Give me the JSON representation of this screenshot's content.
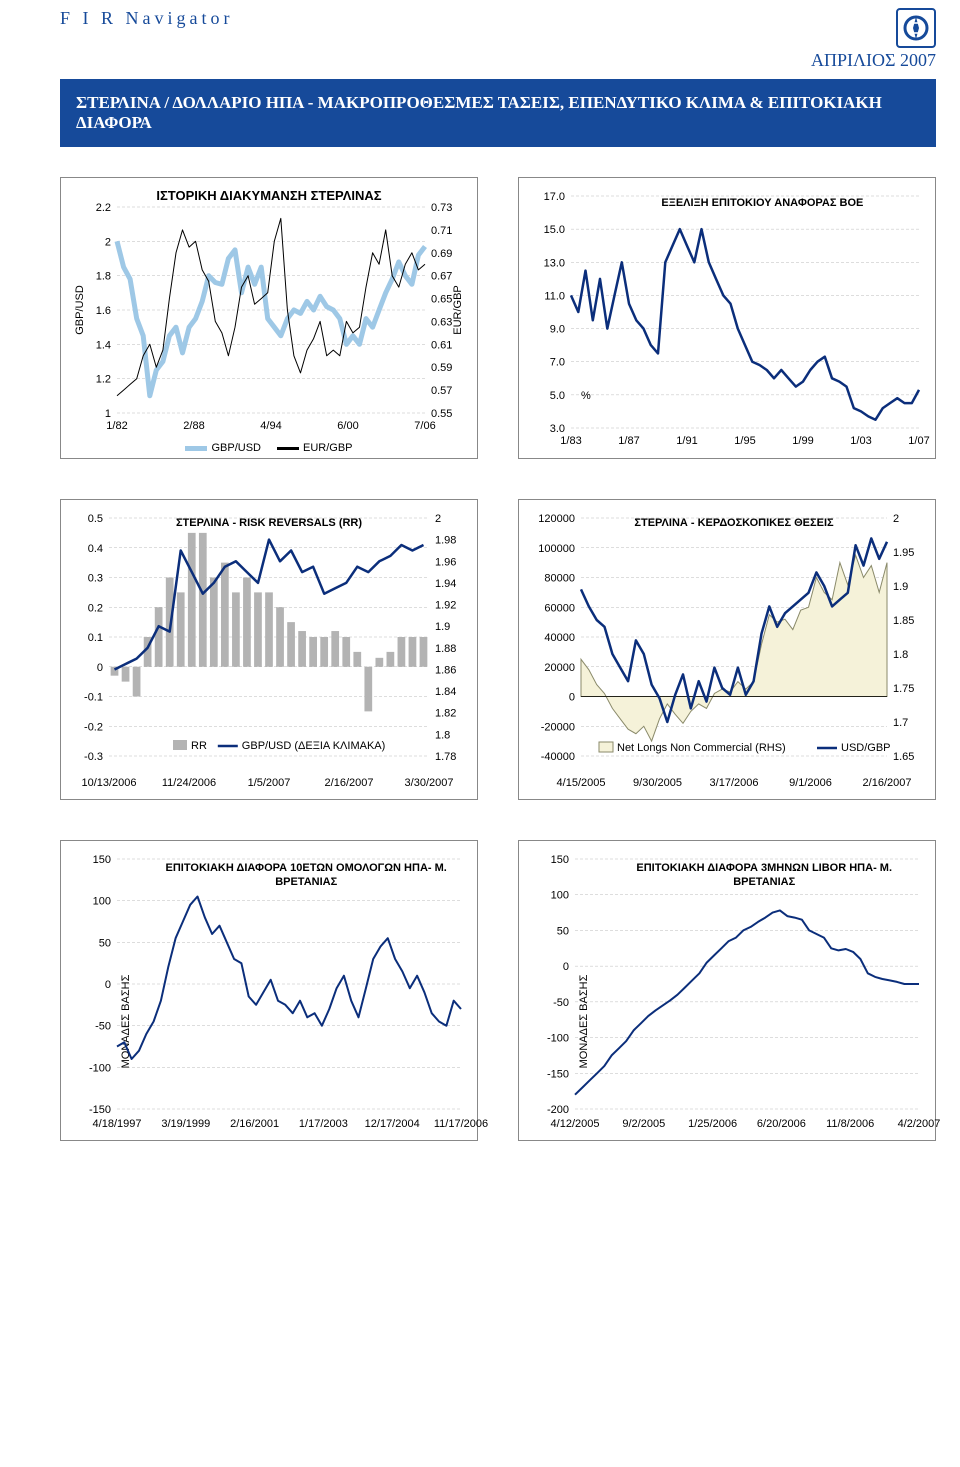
{
  "header": {
    "brand": "F I R  Navigator",
    "date": "ΑΠΡΙΛΙΟΣ 2007"
  },
  "title_bar": "ΣΤΕΡΛΙΝΑ / ΔΟΛΛΑΡΙΟ ΗΠΑ - ΜΑΚΡΟΠΡΟΘΕΣΜΕΣ ΤΑΣΕΙΣ, ΕΠΕΝΔΥΤΙΚΟ ΚΛΙΜΑ & ΕΠΙΤΟΚΙΑΚΗ ΔΙΑΦΟΡΑ",
  "charts": {
    "c1": {
      "type": "line-dual",
      "title": "ΙΣΤΟΡΙΚΗ ΔΙΑΚΥΜΑΝΣΗ ΣΤΕΡΛΙΝΑΣ",
      "x_ticks": [
        "1/82",
        "2/88",
        "4/94",
        "6/00",
        "7/06"
      ],
      "y1_label": "GBP/USD",
      "y1_ticks": [
        "1",
        "1.2",
        "1.4",
        "1.6",
        "1.8",
        "2",
        "2.2"
      ],
      "y1_range": [
        1,
        2.2
      ],
      "y2_label": "EUR/GBP",
      "y2_ticks": [
        "0.55",
        "0.57",
        "0.59",
        "0.61",
        "0.63",
        "0.65",
        "0.67",
        "0.69",
        "0.71",
        "0.73"
      ],
      "y2_range": [
        0.55,
        0.73
      ],
      "legend": [
        "GBP/USD",
        "EUR/GBP"
      ],
      "series": [
        {
          "name": "GBP/USD",
          "axis": "y1",
          "color": "#9ec8e6",
          "width": 5,
          "data": [
            2.0,
            1.85,
            1.78,
            1.55,
            1.45,
            1.1,
            1.25,
            1.3,
            1.45,
            1.5,
            1.35,
            1.5,
            1.55,
            1.65,
            1.8,
            1.76,
            1.75,
            1.9,
            1.95,
            1.7,
            1.85,
            1.75,
            1.85,
            1.55,
            1.5,
            1.45,
            1.55,
            1.6,
            1.58,
            1.65,
            1.6,
            1.68,
            1.62,
            1.6,
            1.55,
            1.4,
            1.45,
            1.4,
            1.55,
            1.5,
            1.6,
            1.7,
            1.78,
            1.88,
            1.8,
            1.75,
            1.92,
            1.97
          ]
        },
        {
          "name": "EUR/GBP",
          "axis": "y2",
          "color": "#000000",
          "width": 1,
          "data": [
            0.565,
            0.57,
            0.575,
            0.58,
            0.6,
            0.61,
            0.59,
            0.605,
            0.65,
            0.69,
            0.71,
            0.695,
            0.7,
            0.675,
            0.665,
            0.63,
            0.62,
            0.6,
            0.625,
            0.66,
            0.67,
            0.645,
            0.65,
            0.655,
            0.7,
            0.72,
            0.64,
            0.6,
            0.585,
            0.605,
            0.615,
            0.63,
            0.6,
            0.605,
            0.6,
            0.63,
            0.62,
            0.625,
            0.66,
            0.69,
            0.68,
            0.71,
            0.67,
            0.66,
            0.68,
            0.69,
            0.675,
            0.68
          ]
        }
      ]
    },
    "c2": {
      "type": "line",
      "title": "ΕΞΕΛΙΞΗ ΕΠΙΤΟΚΙΟΥ ΑΝΑΦΟΡΑΣ BOE",
      "x_ticks": [
        "1/83",
        "1/87",
        "1/91",
        "1/95",
        "1/99",
        "1/03",
        "1/07"
      ],
      "y_ticks": [
        "3.0",
        "5.0",
        "7.0",
        "9.0",
        "11.0",
        "13.0",
        "15.0",
        "17.0"
      ],
      "y_range": [
        3,
        17
      ],
      "unit_label": "%",
      "color": "#0b2e7b",
      "width": 2.5,
      "data": [
        11,
        10,
        12.5,
        9.5,
        12,
        9,
        11,
        13,
        10.5,
        9.5,
        9,
        8,
        7.5,
        13,
        14,
        15,
        14,
        13,
        15,
        13,
        12,
        11,
        10.5,
        9,
        8,
        7,
        6.8,
        6.5,
        6,
        6.5,
        6,
        5.5,
        5.8,
        6.5,
        7,
        7.3,
        6,
        5.8,
        5.5,
        4.2,
        4,
        3.7,
        3.5,
        4.2,
        4.5,
        4.8,
        4.5,
        4.5,
        5.3
      ]
    },
    "c3": {
      "type": "bar-line-dual",
      "title": "ΣΤΕΡΛΙΝΑ - RISK REVERSALS (RR)",
      "x_ticks": [
        "10/13/2006",
        "11/24/2006",
        "1/5/2007",
        "2/16/2007",
        "3/30/2007"
      ],
      "y1_ticks": [
        "-0.3",
        "-0.2",
        "-0.1",
        "0",
        "0.1",
        "0.2",
        "0.3",
        "0.4",
        "0.5"
      ],
      "y1_range": [
        -0.3,
        0.5
      ],
      "y2_ticks": [
        "1.78",
        "1.8",
        "1.82",
        "1.84",
        "1.86",
        "1.88",
        "1.9",
        "1.92",
        "1.94",
        "1.96",
        "1.98",
        "2"
      ],
      "y2_range": [
        1.78,
        2
      ],
      "legend": [
        "RR",
        "GBP/USD (ΔΕΞΙΑ ΚΛΙΜΑΚΑ)"
      ],
      "bar_color": "#b3b3b3",
      "line_color": "#0b2e7b",
      "bar_data": [
        -0.03,
        -0.05,
        -0.1,
        0.1,
        0.2,
        0.3,
        0.25,
        0.45,
        0.45,
        0.3,
        0.35,
        0.25,
        0.3,
        0.25,
        0.25,
        0.2,
        0.15,
        0.12,
        0.1,
        0.1,
        0.12,
        0.1,
        0.05,
        -0.15,
        0.03,
        0.05,
        0.1,
        0.1,
        0.1
      ],
      "line_data": [
        1.86,
        1.865,
        1.87,
        1.88,
        1.9,
        1.895,
        1.97,
        1.95,
        1.93,
        1.94,
        1.955,
        1.96,
        1.95,
        1.94,
        1.98,
        1.96,
        1.97,
        1.95,
        1.955,
        1.93,
        1.935,
        1.94,
        1.955,
        1.95,
        1.96,
        1.965,
        1.975,
        1.97,
        1.975
      ]
    },
    "c4": {
      "type": "area-line-dual",
      "title": "ΣΤΕΡΛΙΝΑ - ΚΕΡΔΟΣΚΟΠΙΚΕΣ ΘΕΣΕΙΣ",
      "x_ticks": [
        "4/15/2005",
        "9/30/2005",
        "3/17/2006",
        "9/1/2006",
        "2/16/2007"
      ],
      "y1_ticks": [
        "-40000",
        "-20000",
        "0",
        "20000",
        "40000",
        "60000",
        "80000",
        "100000",
        "120000"
      ],
      "y1_range": [
        -40000,
        120000
      ],
      "y2_ticks": [
        "1.65",
        "1.7",
        "1.75",
        "1.8",
        "1.85",
        "1.9",
        "1.95",
        "2"
      ],
      "y2_range": [
        1.65,
        2
      ],
      "legend": [
        "Net Longs Non Commercial (RHS)",
        "USD/GBP"
      ],
      "area_color": "#f5f2d9",
      "area_stroke": "#8a8a6a",
      "line_color": "#0b2e7b",
      "area_data": [
        25000,
        18000,
        8000,
        2000,
        -8000,
        -15000,
        -22000,
        -25000,
        -20000,
        -30000,
        -15000,
        -5000,
        -12000,
        -18000,
        -10000,
        -5000,
        -8000,
        2000,
        5000,
        3000,
        10000,
        5000,
        10000,
        35000,
        55000,
        50000,
        52000,
        45000,
        58000,
        60000,
        80000,
        70000,
        65000,
        90000,
        75000,
        95000,
        80000,
        88000,
        70000,
        90000
      ],
      "line_data": [
        1.895,
        1.87,
        1.85,
        1.84,
        1.8,
        1.78,
        1.76,
        1.82,
        1.8,
        1.755,
        1.735,
        1.7,
        1.74,
        1.77,
        1.72,
        1.76,
        1.73,
        1.78,
        1.75,
        1.74,
        1.78,
        1.74,
        1.76,
        1.83,
        1.87,
        1.84,
        1.86,
        1.87,
        1.88,
        1.89,
        1.92,
        1.9,
        1.87,
        1.88,
        1.89,
        1.96,
        1.93,
        1.97,
        1.94,
        1.965
      ]
    },
    "c5": {
      "type": "line",
      "title": "ΕΠΙΤΟΚΙΑΚΗ ΔΙΑΦΟΡΑ 10ΕΤΩΝ ΟΜΟΛΟΓΩΝ ΗΠΑ- Μ. ΒΡΕΤΑΝΙΑΣ",
      "x_ticks": [
        "4/18/1997",
        "3/19/1999",
        "2/16/2001",
        "1/17/2003",
        "12/17/2004",
        "11/17/2006"
      ],
      "y_ticks": [
        "-150",
        "-100",
        "-50",
        "0",
        "50",
        "100",
        "150"
      ],
      "y_range": [
        -150,
        150
      ],
      "y_label": "ΜΟΝΑΔΕΣ ΒΑΣΗΣ",
      "color": "#0b2e7b",
      "width": 2,
      "data": [
        -75,
        -70,
        -90,
        -80,
        -60,
        -45,
        -20,
        20,
        55,
        75,
        95,
        105,
        80,
        60,
        70,
        50,
        30,
        25,
        -15,
        -25,
        -10,
        5,
        -20,
        -25,
        -35,
        -20,
        -40,
        -35,
        -50,
        -30,
        -5,
        10,
        -20,
        -40,
        -5,
        30,
        45,
        55,
        30,
        15,
        -5,
        10,
        -10,
        -35,
        -45,
        -50,
        -20,
        -30
      ]
    },
    "c6": {
      "type": "line",
      "title": "ΕΠΙΤΟΚΙΑΚΗ ΔΙΑΦΟΡΑ 3ΜΗΝΩΝ LIBOR ΗΠΑ- Μ. ΒΡΕΤΑΝΙΑΣ",
      "x_ticks": [
        "4/12/2005",
        "9/2/2005",
        "1/25/2006",
        "6/20/2006",
        "11/8/2006",
        "4/2/2007"
      ],
      "y_ticks": [
        "-200",
        "-150",
        "-100",
        "-50",
        "0",
        "50",
        "100",
        "150"
      ],
      "y_range": [
        -200,
        150
      ],
      "y_label": "ΜΟΝΑΔΕΣ ΒΑΣΗΣ",
      "color": "#0b2e7b",
      "width": 2,
      "data": [
        -180,
        -170,
        -160,
        -150,
        -140,
        -125,
        -115,
        -105,
        -90,
        -80,
        -70,
        -62,
        -55,
        -48,
        -40,
        -30,
        -20,
        -10,
        5,
        15,
        25,
        35,
        40,
        50,
        55,
        62,
        68,
        75,
        78,
        70,
        68,
        65,
        50,
        45,
        40,
        25,
        22,
        24,
        20,
        10,
        -10,
        -15,
        -18,
        -20,
        -22,
        -25,
        -25,
        -25
      ]
    }
  },
  "style": {
    "brand_color": "#164a9a",
    "grid_color": "#bbbbbb",
    "bg": "#ffffff"
  }
}
